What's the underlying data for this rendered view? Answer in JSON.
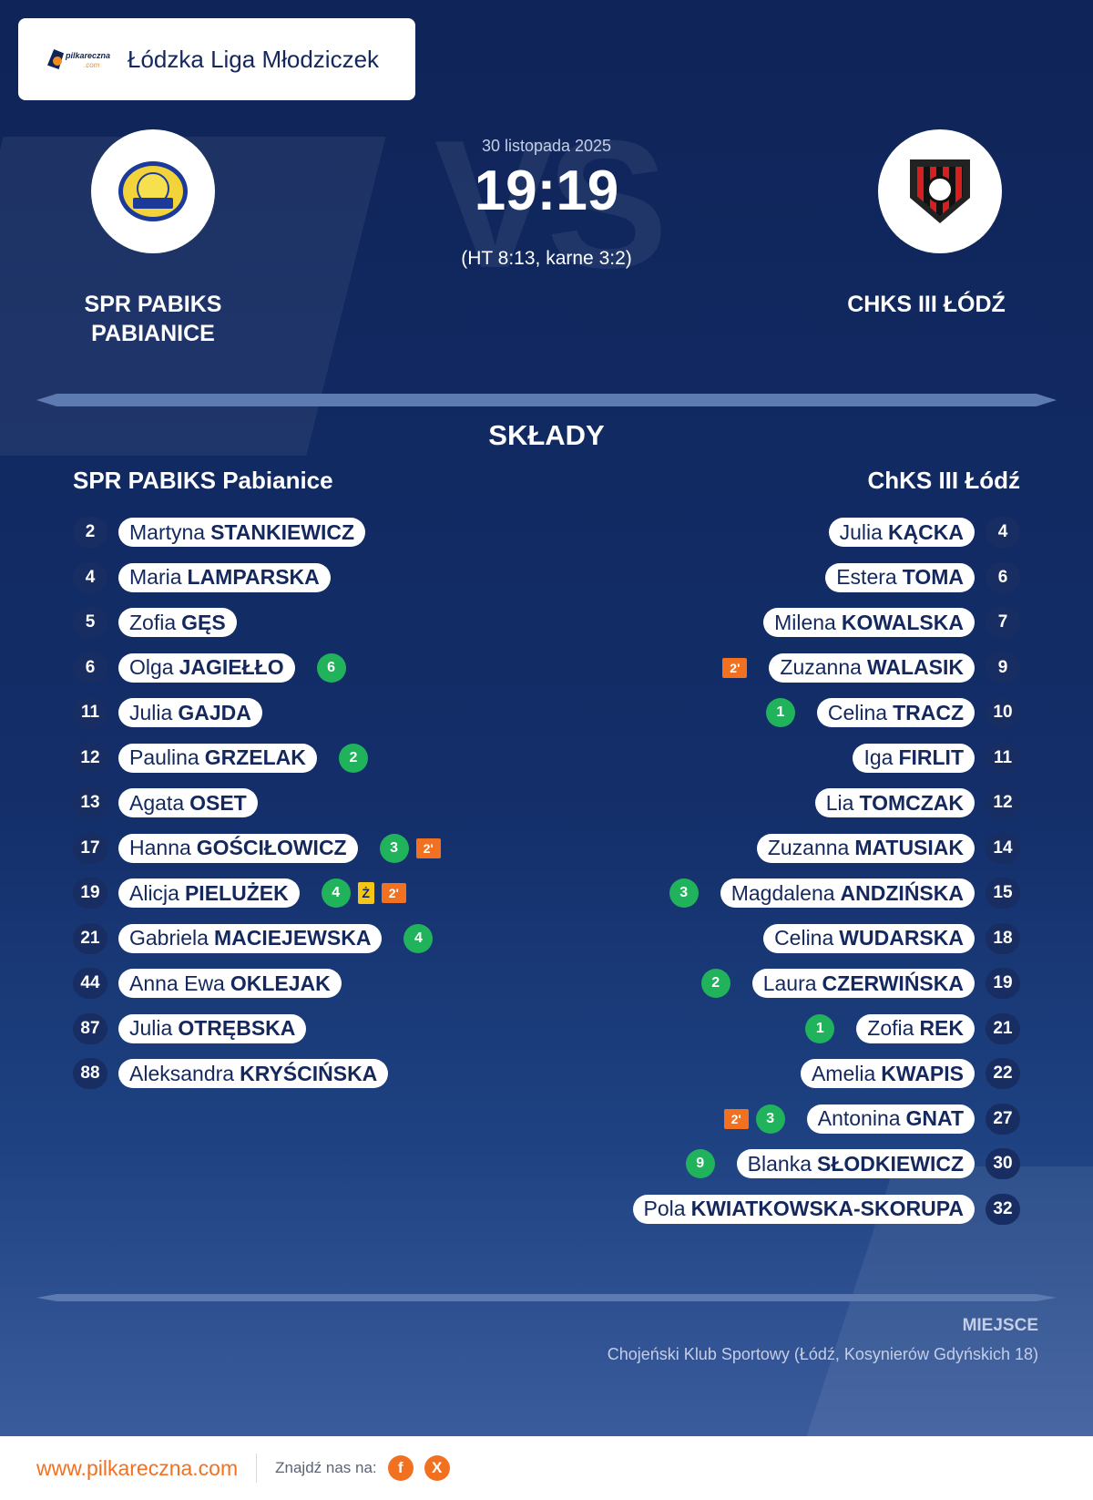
{
  "league": {
    "name": "Łódzka Liga Młodziczek",
    "logo_text": "pilkareczna",
    "logo_sub": ".com"
  },
  "match": {
    "date": "30 listopada 2025",
    "score": "19:19",
    "halftime": "(HT 8:13, karne 3:2)",
    "vs_text": "VS"
  },
  "home": {
    "name_line1": "SPR PABIKS",
    "name_line2": "PABIANICE",
    "lineup_title": "SPR PABIKS Pabianice"
  },
  "away": {
    "name": "CHKS III ŁÓDŹ",
    "lineup_title": "ChKS III Łódź"
  },
  "section_title": "SKŁADY",
  "home_players": [
    {
      "num": "2",
      "first": "Martyna",
      "last": "STANKIEWICZ",
      "goals": "",
      "yellow": "",
      "susp": ""
    },
    {
      "num": "4",
      "first": "Maria",
      "last": "LAMPARSKA",
      "goals": "",
      "yellow": "",
      "susp": ""
    },
    {
      "num": "5",
      "first": "Zofia",
      "last": "GĘS",
      "goals": "",
      "yellow": "",
      "susp": ""
    },
    {
      "num": "6",
      "first": "Olga",
      "last": "JAGIEŁŁO",
      "goals": "6",
      "yellow": "",
      "susp": ""
    },
    {
      "num": "11",
      "first": "Julia",
      "last": "GAJDA",
      "goals": "",
      "yellow": "",
      "susp": ""
    },
    {
      "num": "12",
      "first": "Paulina",
      "last": "GRZELAK",
      "goals": "2",
      "yellow": "",
      "susp": ""
    },
    {
      "num": "13",
      "first": "Agata",
      "last": "OSET",
      "goals": "",
      "yellow": "",
      "susp": ""
    },
    {
      "num": "17",
      "first": "Hanna",
      "last": "GOŚCIŁOWICZ",
      "goals": "3",
      "yellow": "",
      "susp": "2'"
    },
    {
      "num": "19",
      "first": "Alicja",
      "last": "PIELUŻEK",
      "goals": "4",
      "yellow": "Ż",
      "susp": "2'"
    },
    {
      "num": "21",
      "first": "Gabriela",
      "last": "MACIEJEWSKA",
      "goals": "4",
      "yellow": "",
      "susp": ""
    },
    {
      "num": "44",
      "first": "Anna Ewa",
      "last": "OKLEJAK",
      "goals": "",
      "yellow": "",
      "susp": ""
    },
    {
      "num": "87",
      "first": "Julia",
      "last": "OTRĘBSKA",
      "goals": "",
      "yellow": "",
      "susp": ""
    },
    {
      "num": "88",
      "first": "Aleksandra",
      "last": "KRYŚCIŃSKA",
      "goals": "",
      "yellow": "",
      "susp": ""
    }
  ],
  "away_players": [
    {
      "num": "4",
      "first": "Julia",
      "last": "KĄCKA",
      "goals": "",
      "yellow": "",
      "susp": ""
    },
    {
      "num": "6",
      "first": "Estera",
      "last": "TOMA",
      "goals": "",
      "yellow": "",
      "susp": ""
    },
    {
      "num": "7",
      "first": "Milena",
      "last": "KOWALSKA",
      "goals": "",
      "yellow": "",
      "susp": ""
    },
    {
      "num": "9",
      "first": "Zuzanna",
      "last": "WALASIK",
      "goals": "",
      "yellow": "",
      "susp": "2'"
    },
    {
      "num": "10",
      "first": "Celina",
      "last": "TRACZ",
      "goals": "1",
      "yellow": "",
      "susp": ""
    },
    {
      "num": "11",
      "first": "Iga",
      "last": "FIRLIT",
      "goals": "",
      "yellow": "",
      "susp": ""
    },
    {
      "num": "12",
      "first": "Lia",
      "last": "TOMCZAK",
      "goals": "",
      "yellow": "",
      "susp": ""
    },
    {
      "num": "14",
      "first": "Zuzanna",
      "last": "MATUSIAK",
      "goals": "",
      "yellow": "",
      "susp": ""
    },
    {
      "num": "15",
      "first": "Magdalena",
      "last": "ANDZIŃSKA",
      "goals": "3",
      "yellow": "",
      "susp": ""
    },
    {
      "num": "18",
      "first": "Celina",
      "last": "WUDARSKA",
      "goals": "",
      "yellow": "",
      "susp": ""
    },
    {
      "num": "19",
      "first": "Laura",
      "last": "CZERWIŃSKA",
      "goals": "2",
      "yellow": "",
      "susp": ""
    },
    {
      "num": "21",
      "first": "Zofia",
      "last": "REK",
      "goals": "1",
      "yellow": "",
      "susp": ""
    },
    {
      "num": "22",
      "first": "Amelia",
      "last": "KWAPIS",
      "goals": "",
      "yellow": "",
      "susp": ""
    },
    {
      "num": "27",
      "first": "Antonina",
      "last": "GNAT",
      "goals": "3",
      "yellow": "",
      "susp": "2'"
    },
    {
      "num": "30",
      "first": "Blanka",
      "last": "SŁODKIEWICZ",
      "goals": "9",
      "yellow": "",
      "susp": ""
    },
    {
      "num": "32",
      "first": "Pola",
      "last": "KWIATKOWSKA-SKORUPA",
      "goals": "",
      "yellow": "",
      "susp": ""
    }
  ],
  "venue": {
    "label": "MIEJSCE",
    "text": "Chojeński Klub Sportowy (Łódź, Kosynierów Gdyńskich 18)"
  },
  "footer": {
    "url": "www.pilkareczna.com",
    "find_label": "Znajdź nas na:",
    "facebook": "f",
    "x": "X"
  },
  "colors": {
    "navy": "#0f2458",
    "orange": "#f27121",
    "goal_green": "#20b35c",
    "yellow_card": "#f5c518"
  },
  "icons": {
    "facebook": "facebook-icon",
    "x": "x-icon"
  }
}
